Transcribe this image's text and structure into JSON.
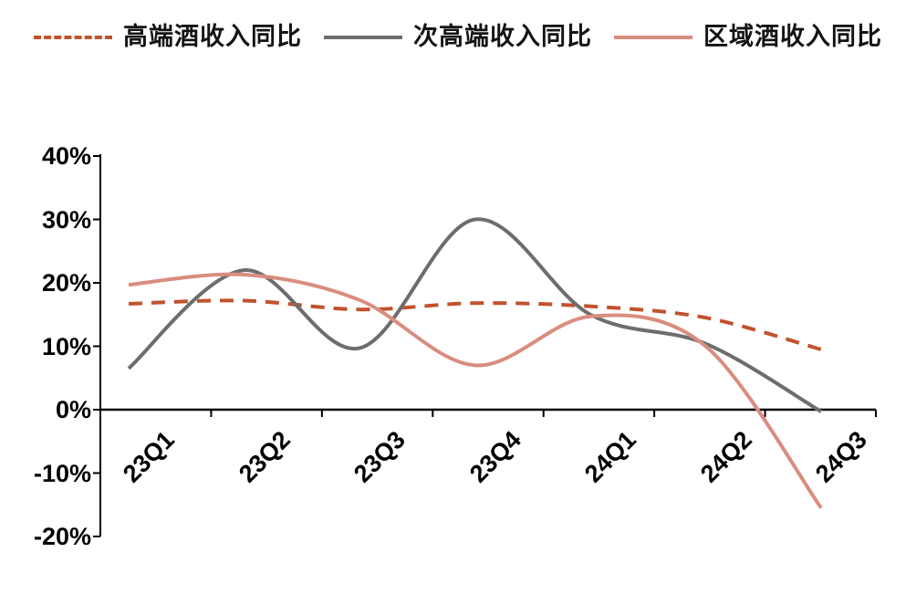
{
  "chart_data": {
    "type": "line",
    "title": "",
    "xlabel": "",
    "ylabel": "",
    "categories": [
      "23Q1",
      "23Q2",
      "23Q3",
      "23Q4",
      "24Q1",
      "24Q2",
      "24Q3"
    ],
    "series": [
      {
        "name": "高端酒收入同比",
        "color": "#c0532d",
        "style": "dashed",
        "values": [
          16.7,
          17.2,
          15.8,
          16.8,
          16.3,
          14.5,
          9.5
        ]
      },
      {
        "name": "次高端收入同比",
        "color": "#6d6d6d",
        "style": "solid",
        "values": [
          6.5,
          22.0,
          9.7,
          30.0,
          15.0,
          10.4,
          -0.3
        ]
      },
      {
        "name": "区域酒收入同比",
        "color": "#d98d7e",
        "style": "solid",
        "values": [
          19.7,
          21.3,
          17.3,
          7.0,
          14.7,
          10.0,
          -15.5
        ]
      }
    ],
    "ylim": [
      -20,
      40
    ],
    "yticks": [
      {
        "value": 40,
        "label": "40%"
      },
      {
        "value": 30,
        "label": "30%"
      },
      {
        "value": 20,
        "label": "20%"
      },
      {
        "value": 10,
        "label": "10%"
      },
      {
        "value": 0,
        "label": "0%"
      },
      {
        "value": -10,
        "label": "-10%"
      },
      {
        "value": -20,
        "label": "-20%"
      }
    ],
    "grid": false,
    "legend_position": "top",
    "axis_color": "#000000",
    "smooth": true
  }
}
